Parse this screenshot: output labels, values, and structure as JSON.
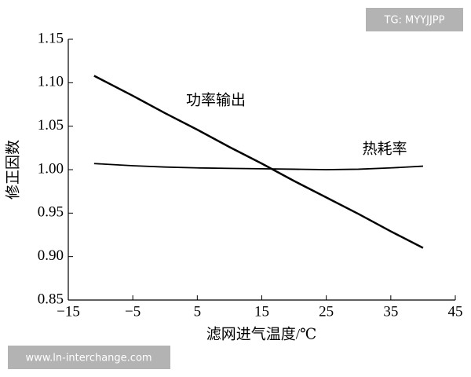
{
  "chart_data": {
    "type": "line",
    "xlabel": "滤网进气温度/℃",
    "ylabel": "修正因数",
    "x": [
      -11,
      -5,
      0,
      5,
      10,
      15,
      20,
      25,
      30,
      35,
      40
    ],
    "series": [
      {
        "name": "功率输出",
        "color": "#000000",
        "values": [
          1.108,
          1.085,
          1.065,
          1.046,
          1.026,
          1.007,
          0.987,
          0.968,
          0.949,
          0.929,
          0.91
        ]
      },
      {
        "name": "热耗率",
        "color": "#000000",
        "values": [
          1.007,
          1.0045,
          1.003,
          1.002,
          1.0015,
          1.001,
          1.0005,
          1.0,
          1.0005,
          1.002,
          1.004
        ]
      }
    ],
    "xlim": [
      -15,
      45
    ],
    "ylim": [
      0.85,
      1.15
    ],
    "xticks": [
      {
        "value": -15,
        "label": "−15"
      },
      {
        "value": -5,
        "label": "−5"
      },
      5,
      15,
      25,
      35,
      45
    ],
    "yticks": [
      0.85,
      {
        "value": 0.9,
        "label": "0.90"
      },
      0.95,
      {
        "value": 1.0,
        "label": "1.00"
      },
      1.05,
      {
        "value": 1.1,
        "label": "1.10"
      },
      1.15
    ],
    "grid": false
  },
  "watermarks": [
    "TG: MYYJJPP",
    "www.ln-interchange.com"
  ]
}
